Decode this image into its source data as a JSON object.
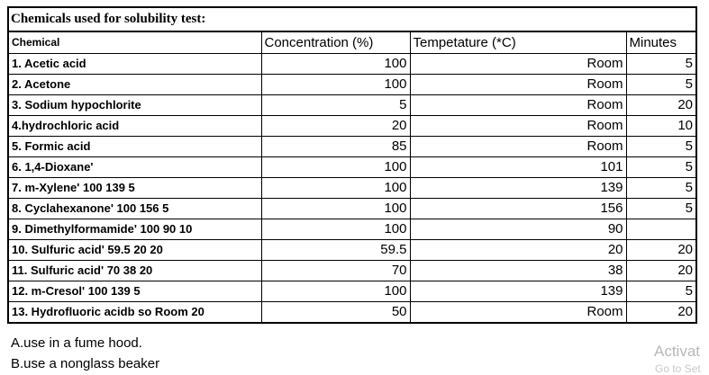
{
  "title": "Chemicals used for solubility test:",
  "headers": {
    "chemical": "Chemical",
    "concentration": "Concentration (%)",
    "temperature": "Tempetature (*C)",
    "minutes": "Minutes"
  },
  "rows": [
    {
      "chemical": "1. Acetic acid",
      "concentration": "100",
      "temperature": "Room",
      "minutes": "5"
    },
    {
      "chemical": "2. Acetone",
      "concentration": "100",
      "temperature": "Room",
      "minutes": "5"
    },
    {
      "chemical": "3. Sodium hypochlorite",
      "concentration": "5",
      "temperature": "Room",
      "minutes": "20"
    },
    {
      "chemical": "4.hydrochloric acid",
      "concentration": "20",
      "temperature": "Room",
      "minutes": "10"
    },
    {
      "chemical": "5. Formic acid",
      "concentration": "85",
      "temperature": "Room",
      "minutes": "5"
    },
    {
      "chemical": "6. 1,4-Dioxane'",
      "concentration": "100",
      "temperature": "101",
      "minutes": "5"
    },
    {
      "chemical": "7. m-Xylene' 100 139 5",
      "concentration": "100",
      "temperature": "139",
      "minutes": "5"
    },
    {
      "chemical": "8. Cyclahexanone' 100 156 5",
      "concentration": "100",
      "temperature": "156",
      "minutes": "5"
    },
    {
      "chemical": "9. Dimethylformamide' 100 90 10",
      "concentration": "100",
      "temperature": "90",
      "minutes": ""
    },
    {
      "chemical": "10. Sulfuric acid' 59.5 20 20",
      "concentration": "59.5",
      "temperature": "20",
      "minutes": "20"
    },
    {
      "chemical": "11. Sulfuric acid' 70 38 20",
      "concentration": "70",
      "temperature": "38",
      "minutes": "20"
    },
    {
      "chemical": "12. m-Cresol' 100 139 5",
      "concentration": "100",
      "temperature": "139",
      "minutes": "5"
    },
    {
      "chemical": "13. Hydrofluoric acidb so Room 20",
      "concentration": "50",
      "temperature": "Room",
      "minutes": "20"
    }
  ],
  "notes": [
    "A.use in a fume hood.",
    "B.use a nonglass beaker"
  ],
  "watermark": {
    "main": "Activat",
    "sub": "Go to Set"
  }
}
